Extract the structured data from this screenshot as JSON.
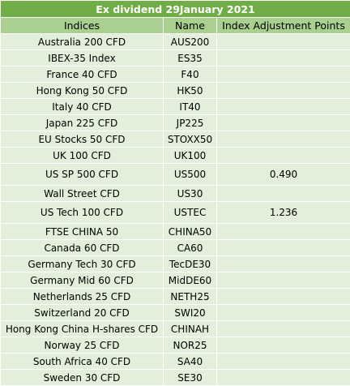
{
  "title": "Ex dividend 29January 2021",
  "columns": [
    "Indices",
    "Name",
    "Index Adjustment Points"
  ],
  "rows": [
    {
      "index": "Australia 200 CFD",
      "name": "AUS200",
      "points": ""
    },
    {
      "index": "IBEX-35 Index",
      "name": "ES35",
      "points": ""
    },
    {
      "index": "France 40 CFD",
      "name": "F40",
      "points": ""
    },
    {
      "index": "Hong Kong 50 CFD",
      "name": "HK50",
      "points": ""
    },
    {
      "index": "Italy 40 CFD",
      "name": "IT40",
      "points": ""
    },
    {
      "index": "Japan 225 CFD",
      "name": "JP225",
      "points": ""
    },
    {
      "index": "EU Stocks 50 CFD",
      "name": "STOXX50",
      "points": ""
    },
    {
      "index": "UK 100 CFD",
      "name": "UK100",
      "points": ""
    },
    {
      "index": "US SP 500 CFD",
      "name": "US500",
      "points": "0.490"
    },
    {
      "index": "Wall Street CFD",
      "name": "US30",
      "points": ""
    },
    {
      "index": "US Tech 100 CFD",
      "name": "USTEC",
      "points": "1.236"
    },
    {
      "index": "FTSE CHINA 50",
      "name": "CHINA50",
      "points": ""
    },
    {
      "index": "Canada 60 CFD",
      "name": "CA60",
      "points": ""
    },
    {
      "index": "Germany Tech 30 CFD",
      "name": "TecDE30",
      "points": ""
    },
    {
      "index": "Germany Mid 60 CFD",
      "name": "MidDE60",
      "points": ""
    },
    {
      "index": "Netherlands 25 CFD",
      "name": "NETH25",
      "points": ""
    },
    {
      "index": "Switzerland 20 CFD",
      "name": "SWI20",
      "points": ""
    },
    {
      "index": "Hong Kong China H-shares CFD",
      "name": "CHINAH",
      "points": ""
    },
    {
      "index": "Norway 25 CFD",
      "name": "NOR25",
      "points": ""
    },
    {
      "index": "South Africa 40 CFD",
      "name": "SA40",
      "points": ""
    },
    {
      "index": "Sweden 30 CFD",
      "name": "SE30",
      "points": ""
    }
  ],
  "colors": {
    "title_bg": "#70ad47",
    "header_bg": "#a9d08e",
    "row_bg": "#e2efda"
  }
}
